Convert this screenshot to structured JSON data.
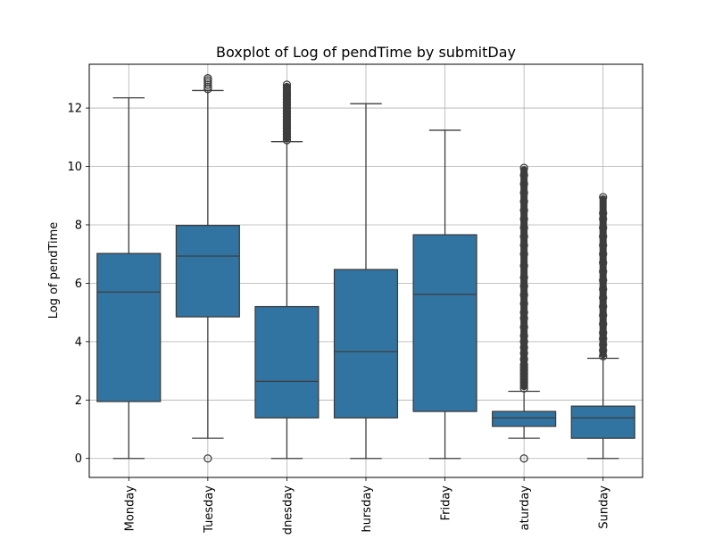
{
  "chart_data": {
    "type": "box",
    "title": "Boxplot of Log of pendTime by submitDay",
    "xlabel": "",
    "ylabel": "Log of pendTime",
    "ylim": [
      -0.65,
      13.5
    ],
    "yticks": [
      0,
      2,
      4,
      6,
      8,
      10,
      12
    ],
    "grid": true,
    "categories": [
      {
        "name": "Monday",
        "label": "Monday",
        "whisker_low": 0,
        "q1": 1.95,
        "median": 5.7,
        "q3": 7.02,
        "whisker_high": 12.35,
        "outliers": []
      },
      {
        "name": "Tuesday",
        "label": "Tuesday",
        "whisker_low": 0.69,
        "q1": 4.85,
        "median": 6.93,
        "q3": 7.98,
        "whisker_high": 12.6,
        "outliers": [
          0,
          12.65,
          12.72,
          12.8,
          12.88,
          12.95,
          13.02
        ]
      },
      {
        "name": "Wednesday",
        "label": "dnesday",
        "whisker_low": 0,
        "q1": 1.39,
        "median": 2.64,
        "q3": 5.2,
        "whisker_high": 10.85,
        "outliers": [
          10.9,
          11.0,
          11.1,
          11.2,
          11.3,
          11.4,
          11.5,
          11.6,
          11.7,
          11.8,
          11.9,
          12.0,
          12.1,
          12.2,
          12.3,
          12.4,
          12.5,
          12.6,
          12.7,
          12.8
        ]
      },
      {
        "name": "Thursday",
        "label": "hursday",
        "whisker_low": 0,
        "q1": 1.39,
        "median": 3.66,
        "q3": 6.47,
        "whisker_high": 12.15,
        "outliers": []
      },
      {
        "name": "Friday",
        "label": "Friday",
        "whisker_low": 0,
        "q1": 1.61,
        "median": 5.62,
        "q3": 7.66,
        "whisker_high": 11.24,
        "outliers": []
      },
      {
        "name": "Saturday",
        "label": "aturday",
        "whisker_low": 0.69,
        "q1": 1.1,
        "median": 1.39,
        "q3": 1.61,
        "whisker_high": 2.3,
        "outliers": [
          0,
          2.4,
          2.5,
          2.6,
          2.7,
          2.8,
          2.9,
          3.0,
          3.1,
          3.2,
          3.4,
          3.6,
          3.8,
          4.0,
          4.2,
          4.5,
          4.8,
          5.0,
          5.3,
          5.6,
          5.9,
          6.2,
          6.6,
          7.0,
          7.3,
          7.6,
          7.9,
          8.2,
          8.5,
          8.8,
          9.1,
          9.4,
          9.7,
          9.95
        ]
      },
      {
        "name": "Sunday",
        "label": "Sunday",
        "whisker_low": 0,
        "q1": 0.69,
        "median": 1.39,
        "q3": 1.79,
        "whisker_high": 3.43,
        "outliers": [
          3.5,
          3.7,
          3.9,
          4.1,
          4.3,
          4.6,
          4.9,
          5.2,
          5.5,
          5.8,
          6.1,
          6.4,
          6.7,
          7.0,
          7.3,
          7.6,
          7.9,
          8.2,
          8.4,
          8.95
        ]
      }
    ]
  },
  "colors": {
    "box_fill": "#3274a1",
    "line": "#3d3d3d",
    "grid": "#b0b0b0",
    "axis": "#000000"
  }
}
